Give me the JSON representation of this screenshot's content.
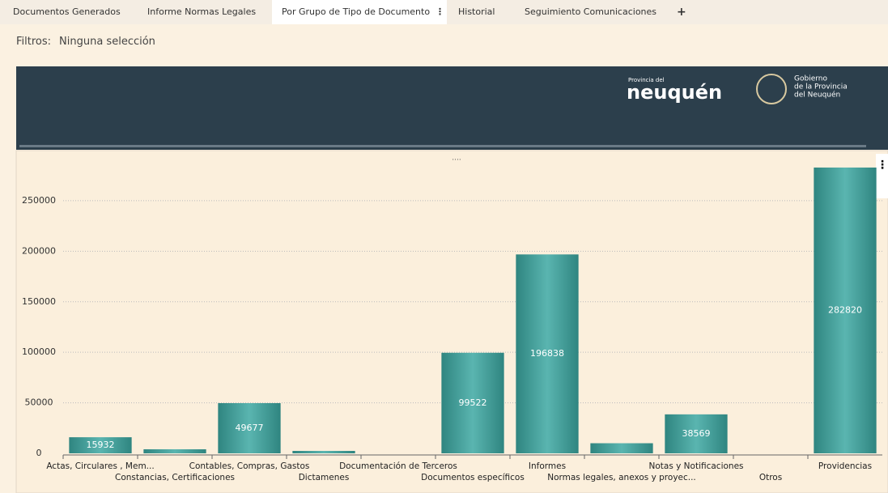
{
  "tabs": [
    "Documentos Generados",
    "Informe Normas Legales",
    "Por Grupo de Tipo de Documento",
    "Historial",
    "Seguimiento Comunicaciones",
    "+"
  ],
  "filters": {
    "label": "Filtros:",
    "value": "Ninguna selección"
  },
  "banner": {
    "province_small": "Provincia del",
    "province_name": "neuquén",
    "gov_line1": "Gobierno",
    "gov_line2": "de la Provincia",
    "gov_line3": "del Neuquén"
  },
  "chart_data": {
    "type": "bar",
    "categories": [
      "Actas, Circulares , Mem...",
      "Constancias, Certificaciones",
      "Contables, Compras, Gastos",
      "Dictamenes",
      "Documentación de Terceros",
      "Documentos específicos",
      "Informes",
      "Normas legales, anexos y proyec...",
      "Notas y Notificaciones",
      "Otros",
      "Providencias"
    ],
    "values": [
      15932,
      4000,
      49677,
      2400,
      0,
      99522,
      196838,
      10000,
      38569,
      0,
      282820
    ],
    "value_labels": [
      "15932",
      null,
      "49677",
      null,
      null,
      "99522",
      "196838",
      null,
      "38569",
      null,
      "282820"
    ],
    "color": "#3f9d98",
    "ylim": [
      0,
      290000
    ],
    "yticks": [
      0,
      50000,
      100000,
      150000,
      200000,
      250000
    ],
    "grid": true
  }
}
